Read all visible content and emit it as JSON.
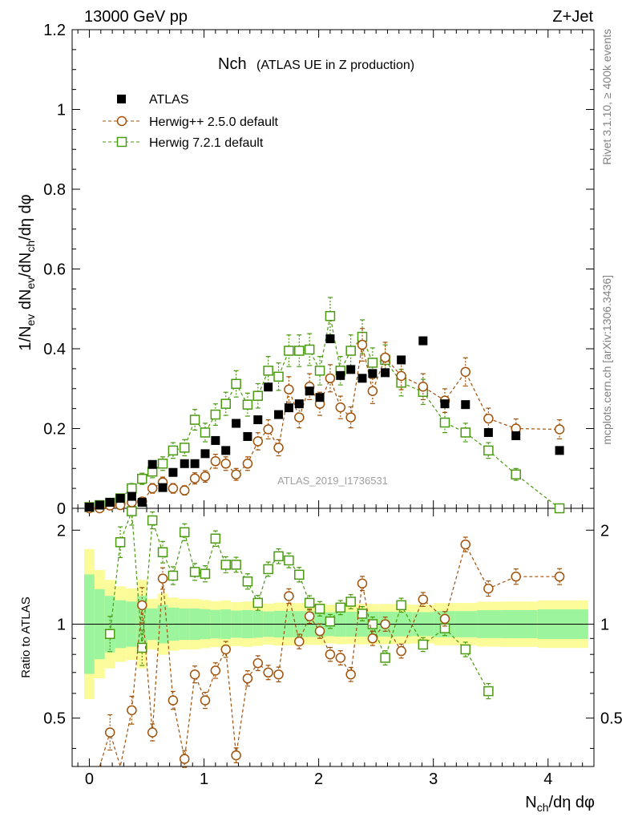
{
  "header": {
    "left": "13000 GeV pp",
    "right": "Z+Jet"
  },
  "side_labels": {
    "rivet": "Rivet 3.1.10, ≥ 400k events",
    "mcplots": "mcplots.cern.ch [arXiv:1306.3436]"
  },
  "chart_data": {
    "type": "scatter",
    "title": "Nch",
    "subtitle": "(ATLAS UE in Z production)",
    "watermark": "ATLAS_2019_I1736531",
    "xlabel": "N_ch/dη dφ",
    "ylabel": "1/N_ev dN_ev/dN_ch/dη dφ",
    "ratio_ylabel": "Ratio to ATLAS",
    "xlim": [
      -0.15,
      4.4
    ],
    "ylim": [
      0,
      1.2
    ],
    "ratio_ylim": [
      0.35,
      2.35
    ],
    "x_ticks": [
      "0",
      "1",
      "2",
      "3",
      "4"
    ],
    "y_ticks": [
      "0",
      "0.2",
      "0.4",
      "0.6",
      "0.8",
      "1",
      "1.2"
    ],
    "ratio_ticks": [
      "0.5",
      "1",
      "2"
    ],
    "legend": [
      "ATLAS",
      "Herwig++ 2.5.0 default",
      "Herwig 7.2.1 default"
    ],
    "colors": {
      "data": "#000000",
      "herwigpp": "#a0520a",
      "herwig7": "#4a9a10",
      "band_inner": "#9cf59c",
      "band_outer": "#fbfb9a"
    },
    "series": [
      {
        "name": "ATLAS",
        "x": [
          0.0,
          0.09,
          0.18,
          0.27,
          0.37,
          0.46,
          0.55,
          0.64,
          0.73,
          0.83,
          0.92,
          1.01,
          1.1,
          1.19,
          1.28,
          1.38,
          1.47,
          1.56,
          1.65,
          1.74,
          1.83,
          1.92,
          2.01,
          2.1,
          2.19,
          2.28,
          2.38,
          2.47,
          2.58,
          2.72,
          2.91,
          3.1,
          3.28,
          3.48,
          3.72,
          4.1
        ],
        "values": [
          0.003,
          0.008,
          0.015,
          0.025,
          0.03,
          0.015,
          0.11,
          0.052,
          0.09,
          0.112,
          0.112,
          0.137,
          0.17,
          0.145,
          0.213,
          0.18,
          0.222,
          0.304,
          0.235,
          0.252,
          0.262,
          0.294,
          0.278,
          0.425,
          0.333,
          0.348,
          0.326,
          0.338,
          0.34,
          0.372,
          0.42,
          0.262,
          0.26,
          0.19,
          0.182,
          0.145
        ]
      },
      {
        "name": "Herwig++ 2.5.0 default",
        "x": [
          0.0,
          0.09,
          0.18,
          0.27,
          0.37,
          0.46,
          0.55,
          0.64,
          0.73,
          0.83,
          0.92,
          1.01,
          1.1,
          1.19,
          1.28,
          1.38,
          1.47,
          1.56,
          1.65,
          1.74,
          1.83,
          1.92,
          2.01,
          2.1,
          2.19,
          2.28,
          2.38,
          2.47,
          2.58,
          2.72,
          2.91,
          3.1,
          3.28,
          3.48,
          3.72,
          4.1
        ],
        "values": [
          0.0,
          0.0,
          0.007,
          0.008,
          0.015,
          0.017,
          0.05,
          0.065,
          0.05,
          0.045,
          0.075,
          0.08,
          0.118,
          0.112,
          0.085,
          0.112,
          0.168,
          0.198,
          0.152,
          0.298,
          0.228,
          0.305,
          0.262,
          0.326,
          0.253,
          0.228,
          0.41,
          0.294,
          0.378,
          0.332,
          0.305,
          0.27,
          0.342,
          0.225,
          0.2,
          0.198
        ],
        "ratio": [
          null,
          0.3,
          0.45,
          0.3,
          0.53,
          1.15,
          0.45,
          1.4,
          0.57,
          0.37,
          0.69,
          0.57,
          0.71,
          0.83,
          0.38,
          0.67,
          0.75,
          0.7,
          0.69,
          1.23,
          0.88,
          1.06,
          0.95,
          0.8,
          0.78,
          0.69,
          1.35,
          0.9,
          1.0,
          0.82,
          1.2,
          1.04,
          1.8,
          1.3,
          1.42,
          1.42
        ]
      },
      {
        "name": "Herwig 7.2.1 default",
        "x": [
          0.0,
          0.09,
          0.18,
          0.27,
          0.37,
          0.46,
          0.55,
          0.64,
          0.73,
          0.83,
          0.92,
          1.01,
          1.1,
          1.19,
          1.28,
          1.38,
          1.47,
          1.56,
          1.65,
          1.74,
          1.83,
          1.92,
          2.01,
          2.1,
          2.19,
          2.28,
          2.38,
          2.47,
          2.58,
          2.72,
          2.91,
          3.1,
          3.28,
          3.48,
          3.72,
          4.1
        ],
        "values": [
          0.003,
          0.008,
          0.014,
          0.025,
          0.05,
          0.074,
          0.092,
          0.112,
          0.145,
          0.152,
          0.222,
          0.19,
          0.235,
          0.262,
          0.312,
          0.26,
          0.282,
          0.345,
          0.33,
          0.395,
          0.395,
          0.398,
          0.345,
          0.482,
          0.345,
          0.395,
          0.43,
          0.365,
          0.372,
          0.315,
          0.292,
          0.215,
          0.19,
          0.145,
          0.085,
          0.0
        ],
        "ratio": [
          null,
          null,
          0.93,
          1.83,
          2.3,
          0.84,
          2.15,
          1.7,
          1.43,
          1.97,
          1.47,
          1.45,
          1.88,
          1.55,
          1.55,
          1.37,
          1.17,
          1.5,
          1.65,
          1.6,
          1.44,
          1.17,
          1.12,
          1.02,
          1.13,
          1.18,
          1.08,
          1.0,
          0.78,
          1.15,
          0.86,
          0.97,
          0.83,
          0.61,
          null,
          null
        ]
      }
    ]
  }
}
